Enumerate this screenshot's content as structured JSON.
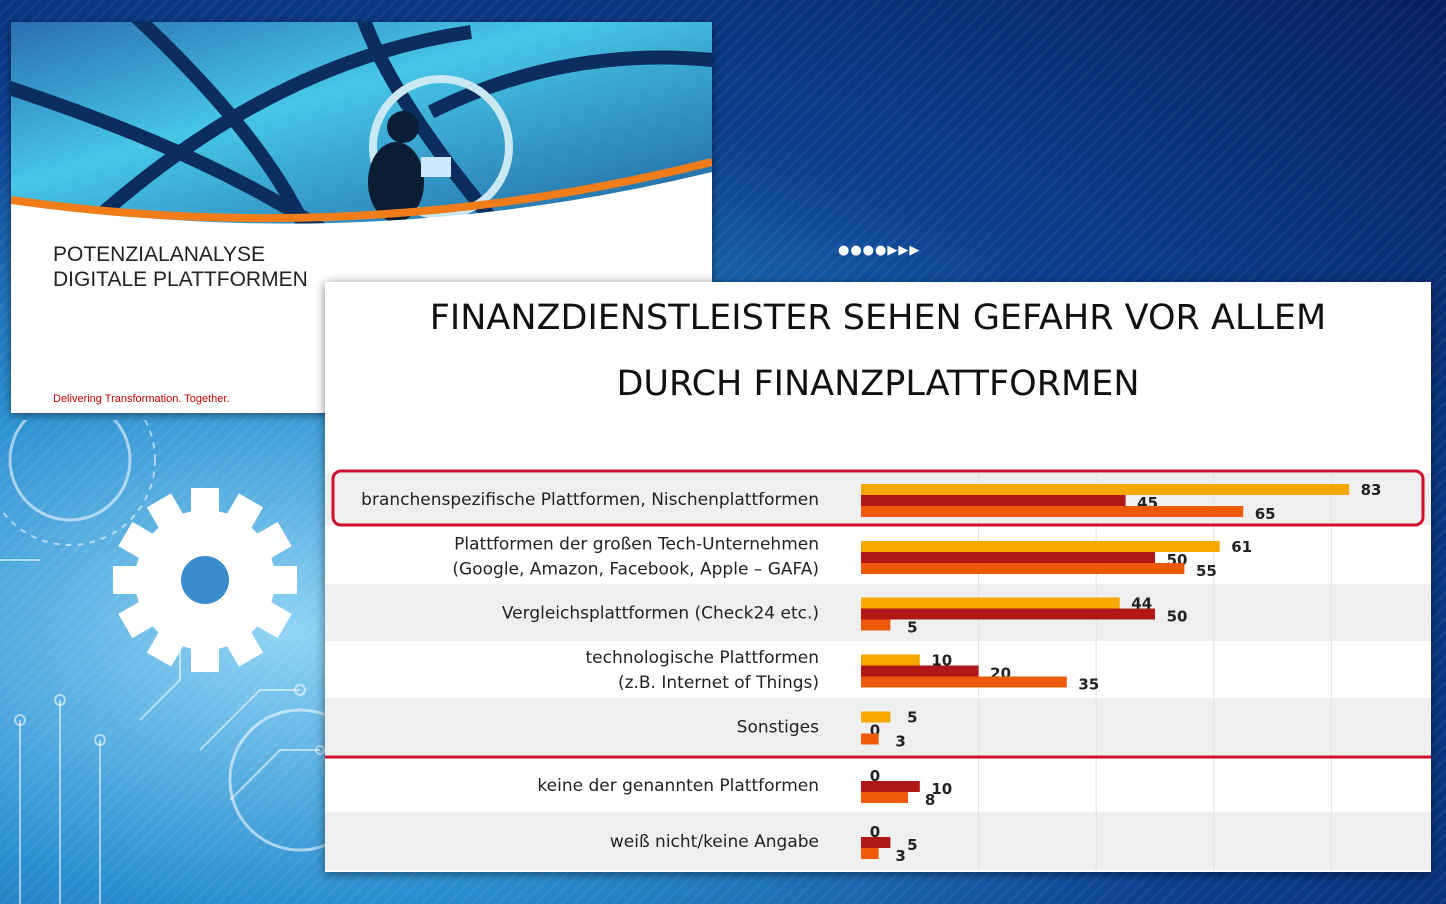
{
  "cover": {
    "title_line1": "POTENZIALANALYSE",
    "title_line2": "DIGITALE PLATTFORMEN",
    "tagline": "Delivering Transformation. Together."
  },
  "arrows_glyph": "●●●●▶▶▶",
  "slide": {
    "title_line1": "FINANZDIENSTLEISTER SEHEN GEFAHR VOR ALLEM",
    "title_line2": "DURCH FINANZPLATTFORMEN"
  },
  "chart_data": {
    "type": "bar",
    "orientation": "horizontal",
    "categories": [
      [
        "branchenspezifische Plattformen, Nischenplattformen"
      ],
      [
        "Plattformen der großen Tech-Unternehmen",
        "(Google, Amazon, Facebook, Apple – GAFA)"
      ],
      [
        "Vergleichsplattformen (Check24 etc.)"
      ],
      [
        "technologische Plattformen",
        "(z.B. Internet of Things)"
      ],
      [
        "Sonstiges"
      ],
      [
        "keine der genannten Plattformen"
      ],
      [
        "weiß nicht/keine Angabe"
      ]
    ],
    "series": [
      {
        "color": "#f5a800",
        "values": [
          83,
          61,
          44,
          10,
          5,
          0,
          0
        ]
      },
      {
        "color": "#b01818",
        "values": [
          45,
          50,
          50,
          20,
          0,
          10,
          5
        ]
      },
      {
        "color": "#ee5a0a",
        "values": [
          65,
          55,
          5,
          35,
          3,
          8,
          3
        ]
      }
    ],
    "xlim": [
      0,
      100
    ],
    "highlighted_category_index": 0,
    "separator_after_index": 4,
    "highlight_color": "#d0102a",
    "grid": true,
    "legend": "none"
  }
}
